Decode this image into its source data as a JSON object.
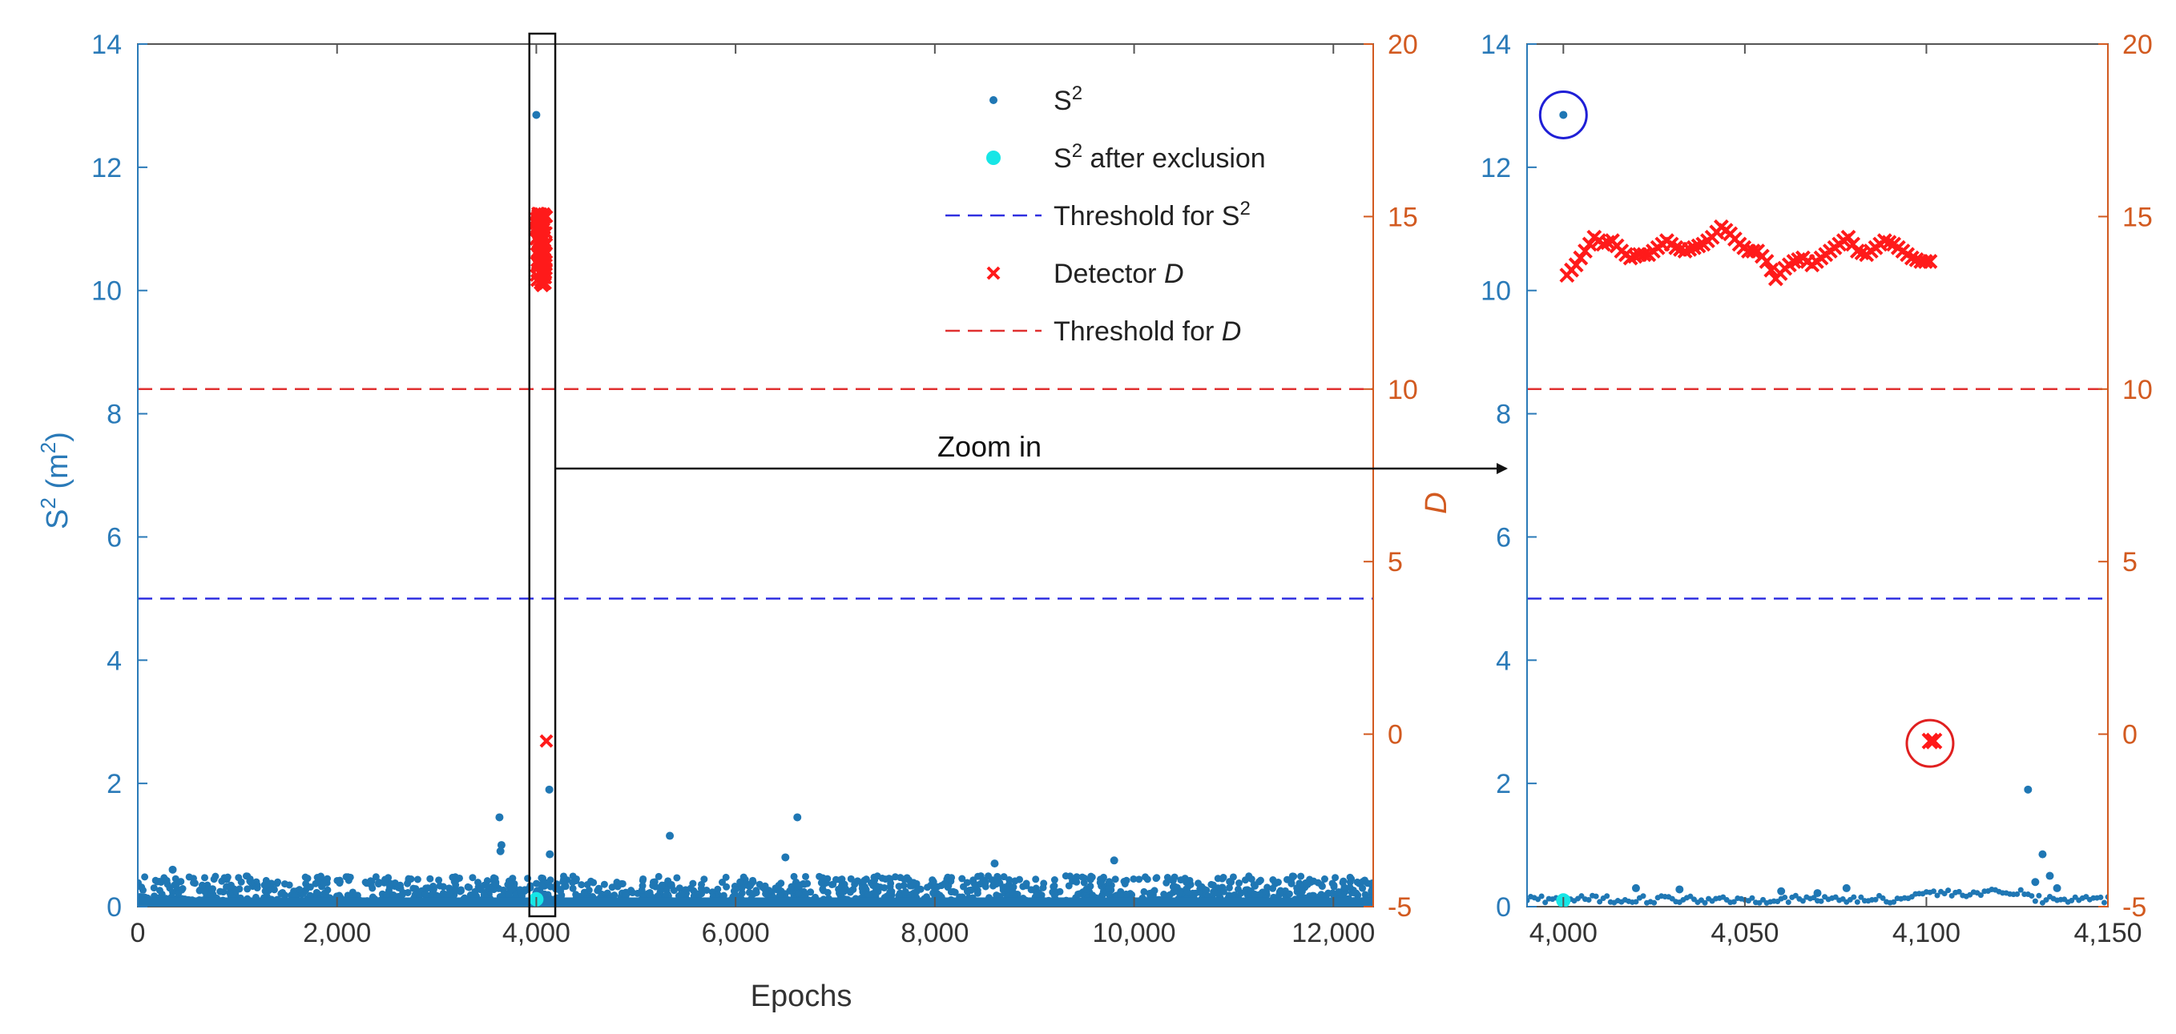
{
  "chart_data": [
    {
      "id": "main",
      "type": "scatter",
      "xlabel": "Epochs",
      "ylabel_left": "S",
      "ylabel_left_sup": "2",
      "ylabel_left_unit_open": " (m",
      "ylabel_left_unit_sup": "2",
      "ylabel_left_unit_close": ")",
      "ylabel_right": "D",
      "xlim": [
        0,
        12400
      ],
      "ylim_left": [
        0,
        14
      ],
      "ylim_right": [
        -5,
        20
      ],
      "x_ticks": [
        0,
        2000,
        4000,
        6000,
        8000,
        10000,
        12000
      ],
      "x_tick_labels": [
        "0",
        "2,000",
        "4,000",
        "6,000",
        "8,000",
        "10,000",
        "12,000"
      ],
      "y_left_ticks": [
        0,
        2,
        4,
        6,
        8,
        10,
        12,
        14
      ],
      "y_right_ticks": [
        -5,
        0,
        5,
        10,
        15,
        20
      ],
      "thresholds": {
        "s2": 5,
        "d": 10
      },
      "s2_highlights": [
        {
          "x": 3630,
          "y": 1.45
        },
        {
          "x": 3650,
          "y": 1.0
        },
        {
          "x": 3640,
          "y": 0.9
        },
        {
          "x": 4000,
          "y": 12.85
        },
        {
          "x": 4130,
          "y": 1.9
        },
        {
          "x": 4135,
          "y": 0.85
        },
        {
          "x": 5340,
          "y": 1.15
        },
        {
          "x": 6620,
          "y": 1.45
        },
        {
          "x": 6500,
          "y": 0.8
        },
        {
          "x": 350,
          "y": 0.6
        },
        {
          "x": 9800,
          "y": 0.75
        },
        {
          "x": 8600,
          "y": 0.7
        }
      ],
      "s2_excluded": [
        {
          "x": 4000,
          "y": 0.12
        }
      ],
      "d_points": [
        {
          "x": 4000,
          "y": 13.3
        },
        {
          "x": 4010,
          "y": 14.4
        },
        {
          "x": 4020,
          "y": 14.0
        },
        {
          "x": 4030,
          "y": 14.2
        },
        {
          "x": 4040,
          "y": 14.8
        },
        {
          "x": 4050,
          "y": 14.1
        },
        {
          "x": 4060,
          "y": 13.0
        },
        {
          "x": 4070,
          "y": 14.0
        },
        {
          "x": 4080,
          "y": 14.4
        },
        {
          "x": 4090,
          "y": 14.2
        },
        {
          "x": 4100,
          "y": 13.7
        },
        {
          "x": 4102,
          "y": 15.0
        },
        {
          "x": 4098,
          "y": 13.6
        },
        {
          "x": 4005,
          "y": 14.7
        },
        {
          "x": 4045,
          "y": 13.9
        },
        {
          "x": 4101,
          "y": -0.2
        }
      ],
      "zoom_box": {
        "x0": 3930,
        "x1": 4190
      },
      "annotation_text": "Zoom in",
      "legend": {
        "position": "top-right",
        "entries": [
          {
            "label": "S",
            "sup": "2",
            "suffix": "",
            "italic": "",
            "marker": "dot-blue"
          },
          {
            "label": "S",
            "sup": "2",
            "suffix": " after exclusion",
            "italic": "",
            "marker": "dot-cyan"
          },
          {
            "label": "Threshold for S",
            "sup": "2",
            "suffix": "",
            "italic": "",
            "marker": "dash-blue"
          },
          {
            "label": "Detector ",
            "sup": "",
            "suffix": "",
            "italic": "D",
            "marker": "x-red"
          },
          {
            "label": "Threshold for ",
            "sup": "",
            "suffix": "",
            "italic": "D",
            "marker": "dash-red"
          }
        ]
      }
    },
    {
      "id": "zoom",
      "type": "scatter",
      "xlim": [
        3990,
        4150
      ],
      "ylim_left": [
        0,
        14
      ],
      "ylim_right": [
        -5,
        20
      ],
      "x_ticks": [
        4000,
        4050,
        4100,
        4150
      ],
      "x_tick_labels": [
        "4,000",
        "4,050",
        "4,100",
        "4,150"
      ],
      "y_left_ticks": [
        0,
        2,
        4,
        6,
        8,
        10,
        12,
        14
      ],
      "y_right_ticks": [
        -5,
        0,
        5,
        10,
        15,
        20
      ],
      "thresholds": {
        "s2": 5,
        "d": 10
      },
      "s2_highlights": [
        {
          "x": 4000,
          "y": 12.85
        },
        {
          "x": 4128,
          "y": 1.9
        },
        {
          "x": 4132,
          "y": 0.85
        },
        {
          "x": 4134,
          "y": 0.5
        },
        {
          "x": 4130,
          "y": 0.4
        },
        {
          "x": 4136,
          "y": 0.3
        },
        {
          "x": 4020,
          "y": 0.3
        },
        {
          "x": 4032,
          "y": 0.28
        },
        {
          "x": 4060,
          "y": 0.25
        },
        {
          "x": 4078,
          "y": 0.3
        },
        {
          "x": 4070,
          "y": 0.22
        }
      ],
      "s2_excluded": [
        {
          "x": 4000,
          "y": 0.1
        }
      ],
      "d_series": [
        13.3,
        13.6,
        14.0,
        14.4,
        14.2,
        14.3,
        14.0,
        13.8,
        13.9,
        13.9,
        14.1,
        14.3,
        14.1,
        14.0,
        14.1,
        14.2,
        14.4,
        14.7,
        14.5,
        14.2,
        14.0,
        14.0,
        13.7,
        13.2,
        13.5,
        13.7,
        13.8,
        13.6,
        13.8,
        14.0,
        14.2,
        14.4,
        14.0,
        13.9,
        14.1,
        14.3,
        14.2,
        14.0,
        13.8,
        13.7,
        13.7
      ],
      "d_outlier": {
        "x": 4101,
        "y": -0.2
      },
      "circles": [
        {
          "x": 4000,
          "y_left": 12.85,
          "color": "#1f1fd6"
        },
        {
          "x": 4101,
          "y_left": 2.65,
          "color": "#e02020"
        }
      ]
    }
  ],
  "colors": {
    "s2": "#1f77b4",
    "excluded": "#17e6e6",
    "detector": "#ff1a1a",
    "threshold_s2": "#3030e0",
    "threshold_d": "#e03030",
    "left_axis": "#2a7ab8",
    "right_axis": "#d25a20"
  }
}
